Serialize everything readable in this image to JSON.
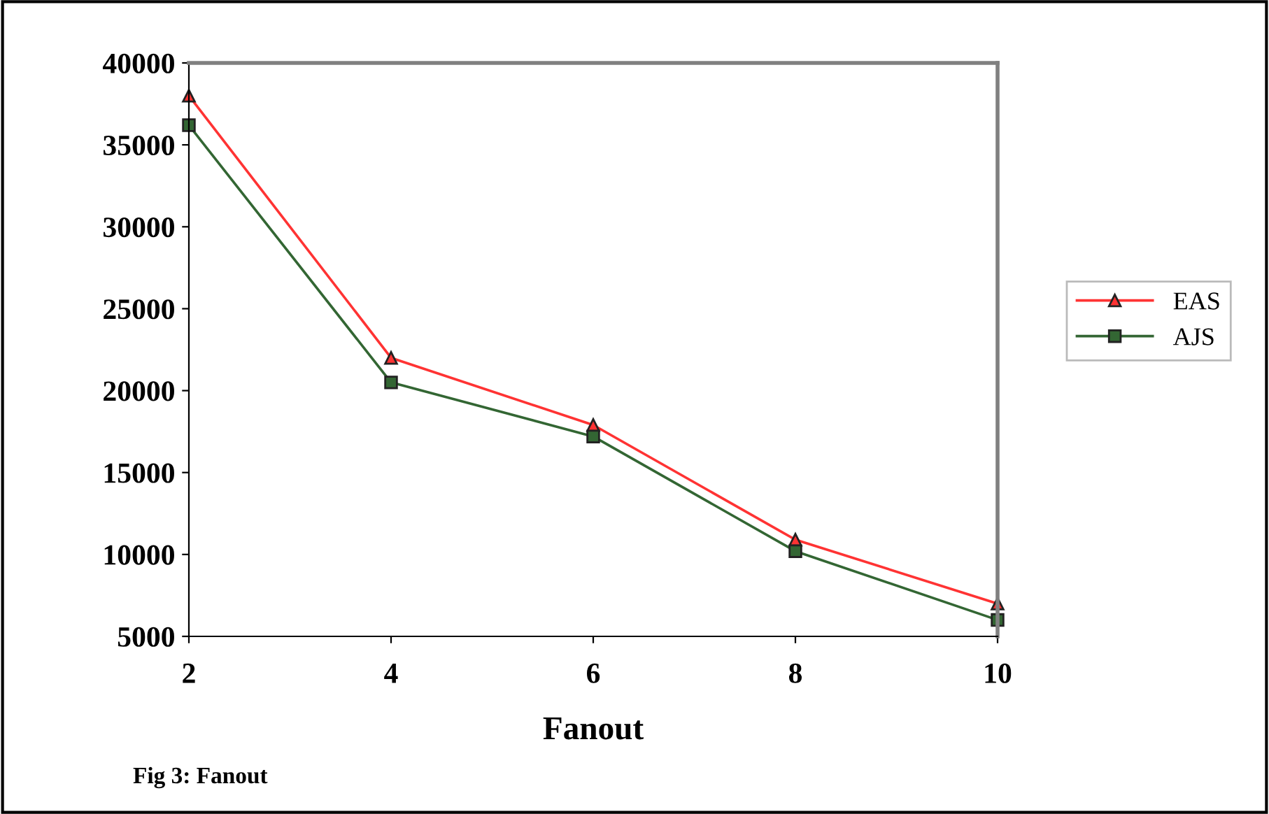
{
  "chart_data": {
    "type": "line",
    "xlabel": "Fanout",
    "annotations": [
      "Fig 3: Fanout"
    ],
    "x": [
      2,
      4,
      6,
      8,
      10
    ],
    "series": [
      {
        "name": "EAS",
        "color": "#ff3333",
        "marker": "triangle",
        "values": [
          38000,
          22000,
          17900,
          10900,
          7000
        ]
      },
      {
        "name": "AJS",
        "color": "#336633",
        "marker": "square",
        "values": [
          36200,
          20500,
          17200,
          10200,
          6000
        ]
      }
    ],
    "xlim": [
      2,
      10
    ],
    "xticks": [
      2,
      4,
      6,
      8,
      10
    ],
    "ylim": [
      5000,
      40000
    ],
    "yticks": [
      5000,
      10000,
      15000,
      20000,
      25000,
      30000,
      35000,
      40000
    ],
    "grid": false,
    "legend": "right",
    "line_style": "solid"
  }
}
